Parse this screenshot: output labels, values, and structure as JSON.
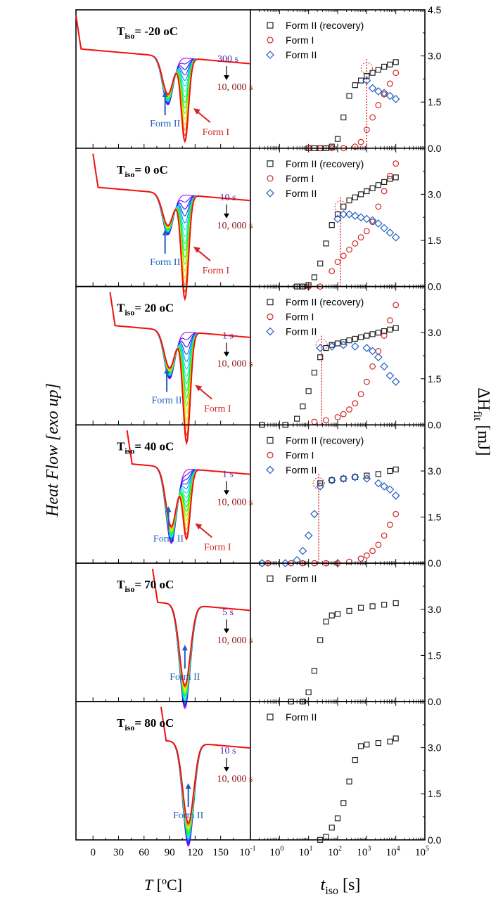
{
  "figure": {
    "y_axis_left_label": "Heat Flow [exo up]",
    "y_axis_right_label": "ΔH",
    "y_axis_right_subscript": "fit",
    "y_axis_right_unit": " [mJ]",
    "x_axis_left_label": "T",
    "x_axis_left_unit": " [ºC]",
    "x_axis_right_label": "t",
    "x_axis_right_subscript": "iso",
    "x_axis_right_unit": " [s]"
  },
  "colors": {
    "form2_recovery": "#222222",
    "form1": "#d42525",
    "form2": "#1f5fbf",
    "purple_label": "#5a1fa0",
    "darkred_label": "#8b1010",
    "arrow_blue": "#1f5fbf",
    "arrow_red": "#d42525"
  },
  "chart_data": {
    "dsc": {
      "type": "line",
      "xlabel": "T [ºC]",
      "ylabel": "Heat Flow [exo up]",
      "xlim": [
        -20,
        185
      ],
      "xticks": [
        0,
        30,
        60,
        90,
        120,
        150
      ],
      "xtick_labels": [
        "0",
        "30",
        "60",
        "90",
        "120",
        "150"
      ]
    },
    "kinetics": {
      "type": "scatter",
      "xscale": "log",
      "xlim": [
        -1,
        5
      ],
      "xtick_labels": [
        "-1",
        "0",
        "1",
        "2",
        "3",
        "4",
        "5"
      ],
      "ylim": [
        0,
        4.5
      ],
      "ylabel": "ΔH_fit [mJ]",
      "ytick_labels": [
        "0.0",
        "1.5",
        "3.0",
        "4.5"
      ],
      "legend_placement": "top-left"
    },
    "panels": [
      {
        "tiso_label": "T",
        "tiso_sub": "iso",
        "tiso_value": "= -20 ",
        "tiso_unit": "oC",
        "t_start": "300 s",
        "t_end": "10, 000 s",
        "form2_label": "Form II",
        "form1_label": "Form I",
        "dsc_start_T": -20,
        "dsc_peak2": {
          "T": 88,
          "depth": 0.35
        },
        "dsc_peak1": {
          "T": 108,
          "depth": 0.6
        },
        "legend": [
          "Form II (recovery)",
          "Form I",
          "Form II"
        ],
        "series": [
          {
            "name": "Form II (recovery)",
            "marker": "square",
            "x": [
              1.0,
              1.2,
              1.4,
              1.6,
              1.8,
              2.0,
              2.2,
              2.4,
              2.6,
              2.8,
              3.0,
              3.2,
              3.4,
              3.6,
              3.8,
              4.0
            ],
            "y": [
              0.0,
              0.0,
              0.0,
              0.0,
              0.05,
              0.3,
              1.0,
              1.7,
              2.05,
              2.2,
              2.35,
              2.45,
              2.55,
              2.65,
              2.72,
              2.8
            ]
          },
          {
            "name": "Form I",
            "marker": "circle",
            "x": [
              1.0,
              1.4,
              1.8,
              2.2,
              2.6,
              2.8,
              3.0,
              3.2,
              3.4,
              3.6,
              3.8,
              4.0
            ],
            "y": [
              0.0,
              0.0,
              0.0,
              0.0,
              0.05,
              0.2,
              0.6,
              1.0,
              1.4,
              1.75,
              2.1,
              2.45
            ]
          },
          {
            "name": "Form II",
            "marker": "diamond",
            "x": [
              3.0,
              3.2,
              3.4,
              3.6,
              3.8,
              4.0
            ],
            "y": [
              2.2,
              1.95,
              1.85,
              1.8,
              1.7,
              1.6
            ]
          }
        ],
        "dotted_x": 3.0
      },
      {
        "tiso_label": "T",
        "tiso_sub": "iso",
        "tiso_value": "= 0 ",
        "tiso_unit": "oC",
        "t_start": "10 s",
        "t_end": "10, 000 s",
        "form2_label": "Form II",
        "form1_label": "Form I",
        "dsc_start_T": 0,
        "dsc_peak2": {
          "T": 88,
          "depth": 0.3
        },
        "dsc_peak1": {
          "T": 108,
          "depth": 0.75
        },
        "legend": [
          "Form II (recovery)",
          "Form I",
          "Form II"
        ],
        "series": [
          {
            "name": "Form II (recovery)",
            "marker": "square",
            "x": [
              0.6,
              0.8,
              1.0,
              1.2,
              1.4,
              1.6,
              1.8,
              2.0,
              2.2,
              2.4,
              2.6,
              2.8,
              3.0,
              3.2,
              3.4,
              3.6,
              3.8,
              4.0
            ],
            "y": [
              0.0,
              0.0,
              0.05,
              0.3,
              0.75,
              1.4,
              2.0,
              2.35,
              2.6,
              2.8,
              2.9,
              3.0,
              3.1,
              3.2,
              3.3,
              3.4,
              3.5,
              3.55
            ]
          },
          {
            "name": "Form I",
            "marker": "circle",
            "x": [
              1.0,
              1.4,
              1.8,
              2.0,
              2.2,
              2.4,
              2.6,
              2.8,
              3.0,
              3.2,
              3.4,
              3.6,
              3.8,
              4.0
            ],
            "y": [
              0.0,
              0.0,
              0.5,
              0.8,
              1.0,
              1.2,
              1.4,
              1.6,
              1.8,
              2.1,
              2.6,
              3.1,
              3.6,
              4.0
            ]
          },
          {
            "name": "Form II",
            "marker": "diamond",
            "x": [
              2.0,
              2.2,
              2.4,
              2.6,
              2.8,
              3.0,
              3.2,
              3.4,
              3.6,
              3.8,
              4.0
            ],
            "y": [
              2.2,
              2.35,
              2.35,
              2.3,
              2.25,
              2.2,
              2.15,
              2.05,
              1.9,
              1.75,
              1.6
            ]
          }
        ],
        "dotted_x": 2.1
      },
      {
        "tiso_label": "T",
        "tiso_sub": "iso",
        "tiso_value": "= 20 ",
        "tiso_unit": "oC",
        "t_start": "1 s",
        "t_end": "10, 000 s",
        "form2_label": "Form II",
        "form1_label": "Form I",
        "dsc_start_T": 20,
        "dsc_peak2": {
          "T": 90,
          "depth": 0.35
        },
        "dsc_peak1": {
          "T": 110,
          "depth": 0.8
        },
        "legend": [
          "Form II (recovery)",
          "Form I",
          "Form II"
        ],
        "series": [
          {
            "name": "Form II (recovery)",
            "marker": "square",
            "x": [
              -0.6,
              0.2,
              0.6,
              0.8,
              1.0,
              1.2,
              1.4,
              1.6,
              1.8,
              2.0,
              2.2,
              2.4,
              2.6,
              2.8,
              3.0,
              3.2,
              3.4,
              3.6,
              3.8,
              4.0
            ],
            "y": [
              0.0,
              0.0,
              0.2,
              0.6,
              1.1,
              1.7,
              2.2,
              2.5,
              2.6,
              2.65,
              2.7,
              2.75,
              2.8,
              2.85,
              2.9,
              2.95,
              3.0,
              3.05,
              3.1,
              3.15
            ]
          },
          {
            "name": "Form I",
            "marker": "circle",
            "x": [
              1.2,
              1.6,
              2.0,
              2.2,
              2.4,
              2.6,
              2.8,
              3.0,
              3.2,
              3.4,
              3.6,
              3.8,
              4.0
            ],
            "y": [
              0.1,
              0.15,
              0.25,
              0.35,
              0.5,
              0.7,
              1.0,
              1.4,
              1.9,
              2.4,
              2.9,
              3.4,
              3.9
            ]
          },
          {
            "name": "Form II",
            "marker": "diamond",
            "x": [
              1.4,
              1.8,
              2.2,
              2.6,
              3.0,
              3.2,
              3.4,
              3.6,
              3.8,
              4.0
            ],
            "y": [
              2.5,
              2.55,
              2.6,
              2.55,
              2.5,
              2.4,
              2.2,
              1.9,
              1.6,
              1.4
            ]
          }
        ],
        "dotted_x": 1.45
      },
      {
        "tiso_label": "T",
        "tiso_sub": "iso",
        "tiso_value": "= 40 ",
        "tiso_unit": "oC",
        "t_start": "1 s",
        "t_end": "10, 000 s",
        "form2_label": "Form II",
        "form1_label": "Form I",
        "dsc_start_T": 40,
        "dsc_peak2": {
          "T": 92,
          "depth": 0.55
        },
        "dsc_peak1": {
          "T": 110,
          "depth": 0.5
        },
        "legend": [
          "Form II (recovery)",
          "Form I",
          "Form II"
        ],
        "series": [
          {
            "name": "Form II (recovery)",
            "marker": "square",
            "x": [
              1.4,
              1.8,
              2.2,
              2.6,
              3.0,
              3.4,
              3.8,
              4.0
            ],
            "y": [
              2.6,
              2.7,
              2.75,
              2.8,
              2.85,
              2.9,
              3.0,
              3.05
            ]
          },
          {
            "name": "Form I",
            "marker": "circle",
            "x": [
              -0.4,
              0.4,
              0.8,
              1.2,
              1.6,
              2.0,
              2.4,
              2.8,
              3.0,
              3.2,
              3.4,
              3.6,
              3.8,
              4.0
            ],
            "y": [
              0.0,
              0.0,
              0.0,
              0.0,
              0.0,
              0.0,
              0.05,
              0.15,
              0.25,
              0.4,
              0.6,
              0.9,
              1.25,
              1.6
            ]
          },
          {
            "name": "Form II",
            "marker": "diamond",
            "x": [
              -0.6,
              0.2,
              0.6,
              0.8,
              1.0,
              1.2,
              1.4,
              1.8,
              2.2,
              2.6,
              3.0,
              3.4,
              3.6,
              3.8,
              4.0
            ],
            "y": [
              0.0,
              0.0,
              0.1,
              0.4,
              0.9,
              1.6,
              2.5,
              2.7,
              2.75,
              2.8,
              2.75,
              2.6,
              2.5,
              2.4,
              2.2
            ]
          }
        ],
        "dotted_x": 1.35
      },
      {
        "tiso_label": "T",
        "tiso_sub": "iso",
        "tiso_value": "= 70 ",
        "tiso_unit": "oC",
        "t_start": "5 s",
        "t_end": "10, 000 s",
        "form2_label": "Form II",
        "form1_label": "",
        "dsc_start_T": 70,
        "dsc_peak2": {
          "T": 108,
          "depth": 0.75
        },
        "dsc_peak1": null,
        "legend": [
          "Form II"
        ],
        "series": [
          {
            "name": "Form II",
            "marker": "square",
            "x": [
              0.4,
              0.8,
              1.0,
              1.2,
              1.4,
              1.6,
              1.8,
              2.0,
              2.4,
              2.8,
              3.2,
              3.6,
              4.0
            ],
            "y": [
              0.0,
              0.0,
              0.3,
              1.0,
              2.0,
              2.6,
              2.8,
              2.85,
              2.95,
              3.05,
              3.1,
              3.15,
              3.2
            ]
          }
        ],
        "dotted_x": null
      },
      {
        "tiso_label": "T",
        "tiso_sub": "iso",
        "tiso_value": "= 80 ",
        "tiso_unit": "oC",
        "t_start": "10 s",
        "t_end": "10, 000 s",
        "form2_label": "Form II",
        "form1_label": "",
        "dsc_start_T": 80,
        "dsc_peak2": {
          "T": 112,
          "depth": 0.75
        },
        "dsc_peak1": null,
        "legend": [
          "Form II"
        ],
        "series": [
          {
            "name": "Form II",
            "marker": "square",
            "x": [
              1.4,
              1.6,
              1.8,
              2.0,
              2.2,
              2.4,
              2.6,
              2.8,
              3.0,
              3.4,
              3.8,
              4.0
            ],
            "y": [
              0.0,
              0.1,
              0.4,
              0.7,
              1.2,
              1.9,
              2.6,
              3.05,
              3.1,
              3.15,
              3.2,
              3.3
            ]
          }
        ],
        "dotted_x": null
      }
    ]
  }
}
